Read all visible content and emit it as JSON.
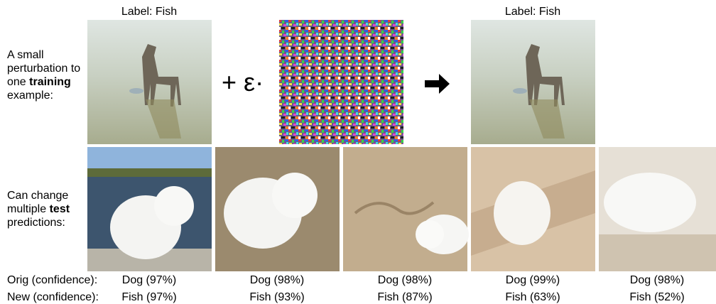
{
  "top_row": {
    "label_left": "Label: Fish",
    "label_right": "Label: Fish",
    "caption": {
      "before": "A small perturbation to one",
      "emphasis": "training",
      "after": "example:"
    },
    "operator": "+ ε·"
  },
  "bottom_row": {
    "caption": {
      "before": "Can change multiple",
      "emphasis": "test",
      "after": "predictions:"
    }
  },
  "predictions": {
    "orig_label": "Orig (confidence):",
    "new_label": "New (confidence):",
    "orig": [
      "Dog (97%)",
      "Dog (98%)",
      "Dog (98%)",
      "Dog (99%)",
      "Dog (98%)"
    ],
    "new": [
      "Fish (97%)",
      "Fish (93%)",
      "Fish (87%)",
      "Fish (63%)",
      "Fish (52%)"
    ]
  }
}
